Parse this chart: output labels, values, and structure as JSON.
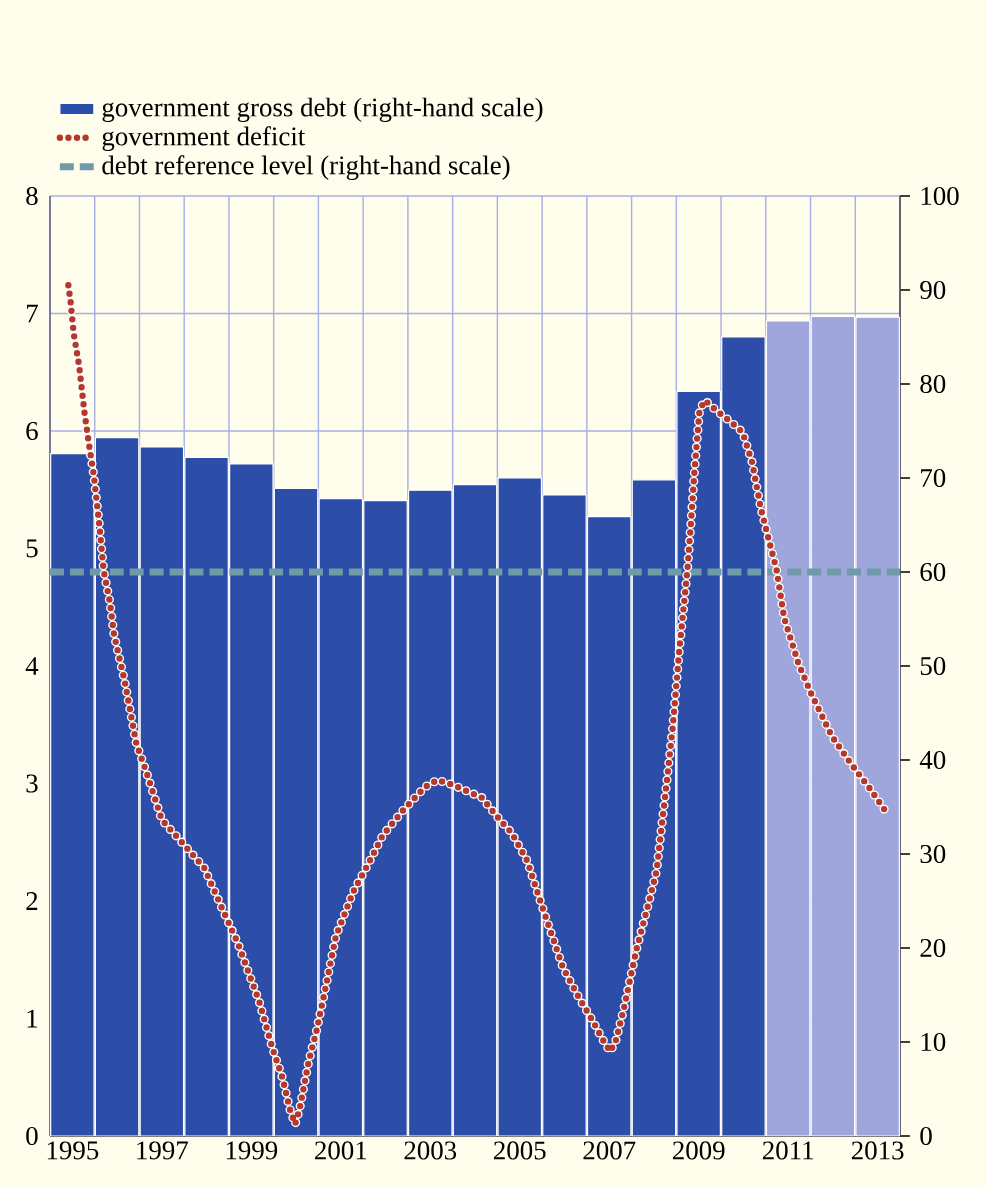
{
  "chart_data": {
    "type": "bar",
    "xlim": [
      1994.5,
      2013.5
    ],
    "xticks": [
      {
        "value": 1994.5,
        "label": null
      },
      1995,
      {
        "value": 1995.5,
        "label": null
      },
      {
        "value": 1996.5,
        "label": null
      },
      1997,
      {
        "value": 1997.5,
        "label": null
      },
      {
        "value": 1998.5,
        "label": null
      },
      1999,
      {
        "value": 1999.5,
        "label": null
      },
      {
        "value": 2000.5,
        "label": null
      },
      2001,
      {
        "value": 2001.5,
        "label": null
      },
      {
        "value": 2002.5,
        "label": null
      },
      2003,
      {
        "value": 2003.5,
        "label": null
      },
      {
        "value": 2004.5,
        "label": null
      },
      2005,
      {
        "value": 2005.5,
        "label": null
      },
      {
        "value": 2006.5,
        "label": null
      },
      2007,
      {
        "value": 2007.5,
        "label": null
      },
      {
        "value": 2008.5,
        "label": null
      },
      2009,
      {
        "value": 2009.5,
        "label": null
      },
      {
        "value": 2010.5,
        "label": null
      },
      2011,
      {
        "value": 2011.5,
        "label": null
      },
      {
        "value": 2012.5,
        "label": null
      },
      2013,
      {
        "value": 2013.5,
        "label": null
      }
    ],
    "ylim": [
      0,
      8
    ],
    "yticks": [
      0,
      1,
      2,
      3,
      4,
      5,
      6,
      7,
      8
    ],
    "y2lim": [
      0,
      100
    ],
    "y2ticks": [
      0,
      10,
      20,
      30,
      40,
      50,
      60,
      70,
      80,
      90,
      100
    ],
    "grid": true,
    "legend": "top",
    "series": [
      {
        "name": "government gross debt (right-hand scale)",
        "axis": "y2",
        "color": "#2c4ea8",
        "x": [
          1995,
          1996,
          1997,
          1998,
          1999,
          2000,
          2001,
          2002,
          2003,
          2004,
          2005,
          2006,
          2007,
          2008,
          2009,
          2010,
          2011,
          2012,
          2013
        ],
        "values": [
          72.6,
          74.3,
          73.3,
          72.2,
          71.5,
          68.9,
          67.8,
          67.6,
          68.7,
          69.3,
          70.0,
          68.2,
          65.9,
          69.8,
          79.2,
          85.0,
          86.7,
          87.2,
          87.1
        ],
        "colors": [
          "#2c4ea8",
          "#2c4ea8",
          "#2c4ea8",
          "#2c4ea8",
          "#2c4ea8",
          "#2c4ea8",
          "#2c4ea8",
          "#2c4ea8",
          "#2c4ea8",
          "#2c4ea8",
          "#2c4ea8",
          "#2c4ea8",
          "#2c4ea8",
          "#2c4ea8",
          "#2c4ea8",
          "#2c4ea8",
          "#9ea6dc",
          "#9ea6dc",
          "#9ea6dc"
        ]
      },
      {
        "name": "government deficit",
        "type": "line",
        "line_style": "dotted",
        "color": "#b5382c",
        "x": [
          1994.91,
          1994.96,
          1995.03,
          1995.15,
          1995.27,
          1995.37,
          1995.48,
          1995.6,
          1995.7,
          1995.84,
          1995.93,
          1996.17,
          1996.43,
          1996.67,
          1997.0,
          1997.47,
          1997.95,
          1998.39,
          1998.69,
          1999.18,
          1999.47,
          1999.7,
          1999.86,
          1999.98,
          2000.08,
          2000.28,
          2000.46,
          2000.68,
          2000.89,
          2001.28,
          2001.62,
          2001.94,
          2002.39,
          2002.88,
          2003.16,
          2003.49,
          2004.15,
          2004.6,
          2004.82,
          2005.17,
          2005.39,
          2005.61,
          2005.97,
          2006.29,
          2006.66,
          2006.84,
          2007.02,
          2007.14,
          2007.32,
          2007.61,
          2007.88,
          2008.06,
          2008.18,
          2008.3,
          2008.42,
          2008.57,
          2008.68,
          2008.75,
          2008.83,
          2008.9,
          2008.96,
          2009.02,
          2009.14,
          2009.41,
          2009.71,
          2009.98,
          2010.19,
          2010.39,
          2010.57,
          2010.74,
          2010.91,
          2011.23,
          2011.52,
          2011.98,
          2012.4,
          2012.82,
          2013.24
        ],
        "values": [
          7.24,
          7.1,
          6.83,
          6.56,
          6.16,
          5.89,
          5.62,
          5.21,
          4.81,
          4.54,
          4.27,
          3.87,
          3.34,
          3.08,
          2.69,
          2.49,
          2.28,
          1.9,
          1.65,
          1.14,
          0.75,
          0.49,
          0.23,
          0.1,
          0.23,
          0.63,
          0.9,
          1.3,
          1.7,
          2.08,
          2.32,
          2.56,
          2.77,
          2.97,
          3.03,
          2.99,
          2.88,
          2.67,
          2.58,
          2.34,
          2.08,
          1.83,
          1.43,
          1.2,
          0.96,
          0.83,
          0.72,
          0.8,
          1.07,
          1.59,
          1.98,
          2.26,
          2.66,
          3.06,
          3.48,
          4.15,
          4.56,
          4.83,
          5.23,
          5.63,
          5.91,
          6.18,
          6.26,
          6.17,
          6.08,
          5.99,
          5.74,
          5.34,
          5.07,
          4.82,
          4.41,
          4.02,
          3.76,
          3.4,
          3.17,
          2.96,
          2.73
        ]
      }
    ],
    "ref_lines": [
      {
        "axis": "y2",
        "value": 60,
        "label": "debt reference level (right-hand scale)",
        "color": "#6f9aa8",
        "line_style": "dashed"
      }
    ]
  }
}
